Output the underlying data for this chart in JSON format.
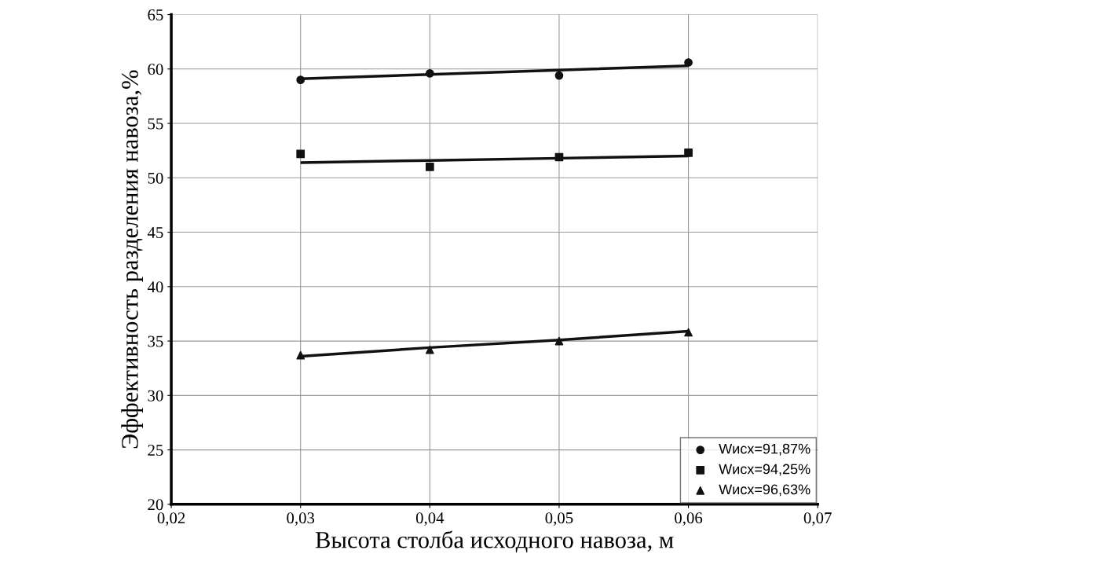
{
  "chart_data": {
    "type": "scatter",
    "xlabel": "Высота столба исходного навоза, м",
    "ylabel": "Эффективность разделения навоза,%",
    "x": [
      0.03,
      0.04,
      0.05,
      0.06
    ],
    "series": [
      {
        "name": "Wисх=91,87%",
        "color": "#111111",
        "marker": "circle",
        "values": [
          59.0,
          59.6,
          59.4,
          60.6
        ]
      },
      {
        "name": "Wисх=94,25%",
        "color": "#111111",
        "marker": "square",
        "values": [
          52.2,
          51.0,
          51.9,
          52.3
        ]
      },
      {
        "name": "Wисх=96,63%",
        "color": "#111111",
        "marker": "triangle",
        "values": [
          33.7,
          34.2,
          35.0,
          35.8
        ]
      },
      {
        "type": "line",
        "color": "#111111",
        "values": [
          59.1,
          59.5,
          59.9,
          60.3
        ]
      },
      {
        "type": "line",
        "color": "#111111",
        "values": [
          51.4,
          51.6,
          51.8,
          52.0
        ]
      },
      {
        "type": "line",
        "color": "#111111",
        "values": [
          33.6,
          34.4,
          35.1,
          35.9
        ]
      }
    ],
    "xlim": [
      0.02,
      0.07
    ],
    "xticks": [
      {
        "value": 0.02,
        "label": "0,02"
      },
      {
        "value": 0.03,
        "label": "0,03"
      },
      {
        "value": 0.04,
        "label": "0,04"
      },
      {
        "value": 0.05,
        "label": "0,05"
      },
      {
        "value": 0.06,
        "label": "0,06"
      },
      {
        "value": 0.07,
        "label": "0,07"
      }
    ],
    "ylim": [
      20,
      65
    ],
    "yticks": [
      20,
      25,
      30,
      35,
      40,
      45,
      50,
      55,
      60,
      65
    ],
    "grid": true,
    "legend": "bottom right"
  }
}
